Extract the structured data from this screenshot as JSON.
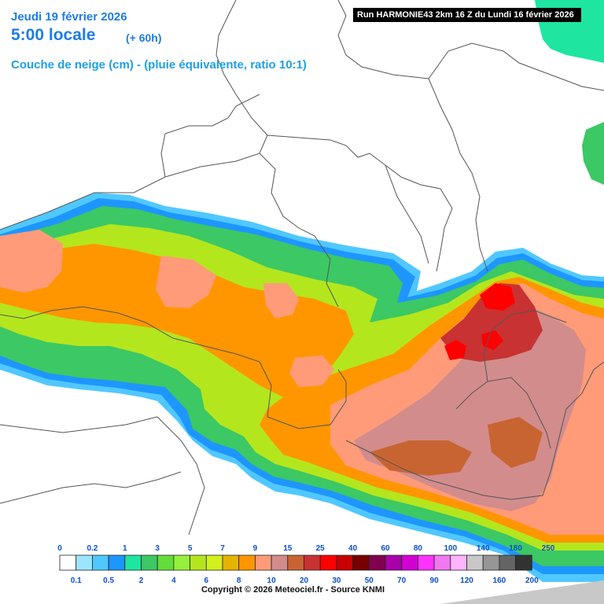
{
  "header": {
    "date": "Jeudi 19 février 2026",
    "time": "5:00 locale",
    "lead": "(+ 60h)",
    "parameter": "Couche de neige (cm) - (pluie équivalente, ratio 10:1)",
    "run": "Run HARMONIE43 2km 16 Z du Lundi 16 février 2026"
  },
  "legend": {
    "top_labels": [
      "0",
      "0.2",
      "1",
      "3",
      "5",
      "7",
      "9",
      "15",
      "25",
      "40",
      "60",
      "80",
      "100",
      "140",
      "180",
      "250"
    ],
    "bottom_labels": [
      "0.1",
      "0.5",
      "2",
      "4",
      "6",
      "8",
      "10",
      "20",
      "30",
      "50",
      "70",
      "90",
      "120",
      "160",
      "200"
    ],
    "colors": [
      "#ffffff",
      "#9be6ff",
      "#50c8ff",
      "#1e96ff",
      "#1ee6a0",
      "#3cc864",
      "#64dc3c",
      "#96f03c",
      "#b4e61e",
      "#d2f01e",
      "#e6b400",
      "#ff9600",
      "#ff9b78",
      "#d28c8c",
      "#c86432",
      "#c83232",
      "#ff0000",
      "#c80000",
      "#780000",
      "#820050",
      "#aa00aa",
      "#d200d2",
      "#ff32ff",
      "#f078f0",
      "#ffb4ff",
      "#c8c8c8",
      "#969696",
      "#646464",
      "#323232"
    ]
  },
  "copyright": "Copyright © 2026 Meteociel.fr - Source KNMI"
}
